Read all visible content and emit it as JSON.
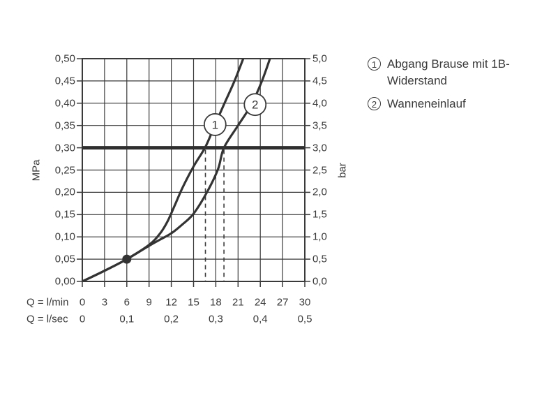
{
  "page": {
    "background": "#ffffff",
    "ink": "#3a3a3a"
  },
  "chart_data": {
    "type": "line",
    "title": "",
    "grid": {
      "on": true,
      "x_step_lmin": 3,
      "y_step_mpa": 0.05
    },
    "x_axis": {
      "row1_caption": "Q = l/min",
      "row1_ticks": [
        "0",
        "3",
        "6",
        "9",
        "12",
        "15",
        "18",
        "21",
        "24",
        "27",
        "30"
      ],
      "row2_caption": "Q = l/sec",
      "row2_ticks": [
        "0",
        "0,1",
        "0,2",
        "0,3",
        "0,4",
        "0,5"
      ],
      "range_lmin": [
        0,
        30
      ]
    },
    "y_axis_left": {
      "title": "MPa",
      "ticks": [
        "0,00",
        "0,05",
        "0,10",
        "0,15",
        "0,20",
        "0,25",
        "0,30",
        "0,35",
        "0,40",
        "0,45",
        "0,50"
      ],
      "range_mpa": [
        0,
        0.5
      ]
    },
    "y_axis_right": {
      "title": "bar",
      "ticks": [
        "0,0",
        "0,5",
        "1,0",
        "1,5",
        "2,0",
        "2,5",
        "3,0",
        "3,5",
        "4,0",
        "4,5",
        "5,0"
      ],
      "range_bar": [
        0,
        5
      ]
    },
    "reference_line": {
      "value_mpa": 0.3,
      "value_bar": 3.0
    },
    "dashed_guides_lmin": [
      16.6,
      19.1
    ],
    "point_marker": {
      "at": [
        6,
        0.05
      ]
    },
    "series": [
      {
        "name": "Abgang Brause mit 1B-Widerstand",
        "marker": "1",
        "marker_at": [
          17.9,
          0.352
        ],
        "crosses_reference_at_lmin": 16.6,
        "points": [
          [
            0,
            0
          ],
          [
            3,
            0.024
          ],
          [
            6,
            0.05
          ],
          [
            9,
            0.082
          ],
          [
            10.5,
            0.108
          ],
          [
            11.5,
            0.135
          ],
          [
            12.5,
            0.172
          ],
          [
            13.5,
            0.21
          ],
          [
            15,
            0.258
          ],
          [
            16.6,
            0.302
          ],
          [
            17.9,
            0.352
          ],
          [
            19.2,
            0.401
          ],
          [
            20.5,
            0.449
          ],
          [
            21.7,
            0.5
          ]
        ]
      },
      {
        "name": "Wanneneinlauf",
        "marker": "2",
        "marker_at": [
          23.3,
          0.397
        ],
        "crosses_reference_at_lmin": 19.1,
        "points": [
          [
            0,
            0
          ],
          [
            3,
            0.024
          ],
          [
            6,
            0.05
          ],
          [
            9,
            0.08
          ],
          [
            10.5,
            0.094
          ],
          [
            12,
            0.108
          ],
          [
            13.5,
            0.128
          ],
          [
            15,
            0.152
          ],
          [
            16.8,
            0.2
          ],
          [
            18.3,
            0.252
          ],
          [
            19.1,
            0.3
          ],
          [
            21,
            0.35
          ],
          [
            22.8,
            0.397
          ],
          [
            24.2,
            0.449
          ],
          [
            25.3,
            0.5
          ]
        ]
      }
    ]
  },
  "legend": {
    "items": [
      {
        "symbol": "1",
        "lines": [
          "Abgang Brause mit 1B-",
          "Widerstand"
        ]
      },
      {
        "symbol": "2",
        "lines": [
          "Wanneneinlauf"
        ]
      }
    ]
  }
}
